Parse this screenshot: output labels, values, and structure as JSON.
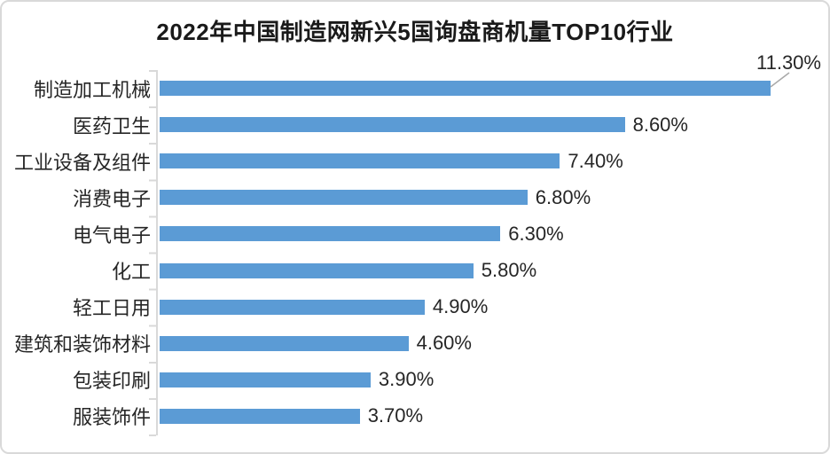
{
  "chart_data": {
    "type": "bar",
    "orientation": "horizontal",
    "title": "2022年中国制造网新兴5国询盘商机量TOP10行业",
    "categories": [
      "制造加工机械",
      "医药卫生",
      "工业设备及组件",
      "消费电子",
      "电气电子",
      "化工",
      "轻工日用",
      "建筑和装饰材料",
      "包装印刷",
      "服装饰件"
    ],
    "values": [
      11.3,
      8.6,
      7.4,
      6.8,
      6.3,
      5.8,
      4.9,
      4.6,
      3.9,
      3.7
    ],
    "labels": [
      "11.30%",
      "8.60%",
      "7.40%",
      "6.80%",
      "6.30%",
      "5.80%",
      "4.90%",
      "4.60%",
      "3.90%",
      "3.70%"
    ],
    "xlabel": "",
    "ylabel": "",
    "xlim": [
      0,
      12
    ],
    "grid": false,
    "legend": null,
    "bar_color": "#5b9bd5",
    "axis_color": "#d9d9d9",
    "text_color": "#262626",
    "callout": {
      "index": 0,
      "label": "11.30%",
      "leader_color": "#a9a9a9"
    }
  }
}
